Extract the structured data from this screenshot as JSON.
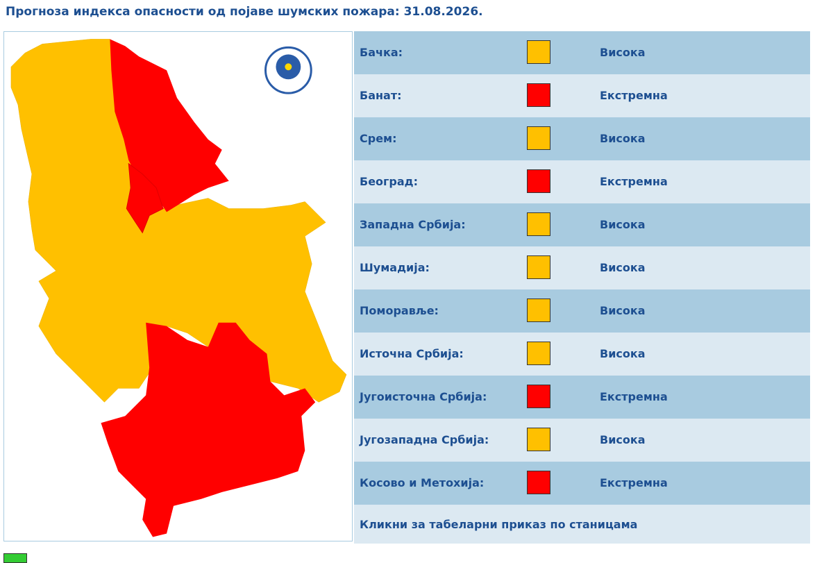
{
  "header": {
    "title": "Прогноза индекса опасности од појаве шумских пожара: 31.08.2026."
  },
  "table": {
    "rows": [
      {
        "region": "Бачка:",
        "level": "Висока",
        "color": "#ffc000"
      },
      {
        "region": "Банат:",
        "level": "Екстремна",
        "color": "#ff0000"
      },
      {
        "region": "Срем:",
        "level": "Висока",
        "color": "#ffc000"
      },
      {
        "region": "Београд:",
        "level": "Екстремна",
        "color": "#ff0000"
      },
      {
        "region": "Западна Србија:",
        "level": "Висока",
        "color": "#ffc000"
      },
      {
        "region": "Шумадија:",
        "level": "Висока",
        "color": "#ffc000"
      },
      {
        "region": "Поморавље:",
        "level": "Висока",
        "color": "#ffc000"
      },
      {
        "region": "Источна Србија:",
        "level": "Висока",
        "color": "#ffc000"
      },
      {
        "region": "Југоисточна Србија:",
        "level": "Екстремна",
        "color": "#ff0000"
      },
      {
        "region": "Југозападна Србија:",
        "level": "Висока",
        "color": "#ffc000"
      },
      {
        "region": "Косово и Метохија:",
        "level": "Екстремна",
        "color": "#ff0000"
      }
    ],
    "link": "Кликни за табеларни приказ по станицама"
  }
}
